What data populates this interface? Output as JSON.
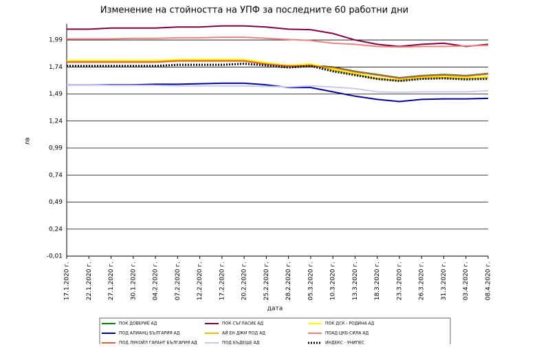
{
  "chart_data": {
    "type": "line",
    "title": "Изменение на стойността на УПФ за последните 60 работни дни",
    "y_label": "лв",
    "x_label": "дата",
    "categories": [
      "17.1.2020 г.",
      "22.1.2020 г.",
      "27.1.2020 г.",
      "30.1.2020 г.",
      "04.2.2020 г.",
      "07.2.2020 г.",
      "12.2.2020 г.",
      "17.2.2020 г.",
      "20.2.2020 г.",
      "25.2.2020 г.",
      "28.2.2020 г.",
      "05.3.2020 г.",
      "10.3.2020 г.",
      "13.3.2020 г.",
      "18.3.2020 г.",
      "23.3.2020 г.",
      "26.3.2020 г.",
      "31.3.2020 г.",
      "03.4.2020 г.",
      "08.4.2020 г."
    ],
    "ylim": [
      -0.01,
      2.14
    ],
    "yticks": [
      {
        "value": -0.01,
        "label": "-0,01"
      },
      {
        "value": 0.24,
        "label": "0,24"
      },
      {
        "value": 0.49,
        "label": "0,49"
      },
      {
        "value": 0.74,
        "label": "0,74"
      },
      {
        "value": 0.99,
        "label": "0,99"
      },
      {
        "value": 1.24,
        "label": "1,24"
      },
      {
        "value": 1.49,
        "label": "1,49"
      },
      {
        "value": 1.74,
        "label": "1,74"
      },
      {
        "value": 1.99,
        "label": "1,99"
      }
    ],
    "grid": true,
    "series": [
      {
        "name": "ПОК ДОВЕРИЕ АД",
        "color": "#008000",
        "style": "solid",
        "values": [
          1.79,
          1.79,
          1.79,
          1.79,
          1.79,
          1.8,
          1.8,
          1.8,
          1.8,
          1.77,
          1.755,
          1.755,
          1.74,
          1.7,
          1.67,
          1.64,
          1.66,
          1.67,
          1.66,
          1.68
        ]
      },
      {
        "name": "ПОК СЪГЛАСИЕ АД",
        "color": "#800040",
        "style": "solid",
        "values": [
          2.09,
          2.09,
          2.1,
          2.1,
          2.1,
          2.11,
          2.11,
          2.12,
          2.12,
          2.11,
          2.09,
          2.085,
          2.05,
          1.99,
          1.95,
          1.93,
          1.95,
          1.96,
          1.93,
          1.95
        ]
      },
      {
        "name": "ПОК ДСК - РОДИНА АД",
        "color": "#ffff00",
        "style": "solid",
        "values": [
          1.8,
          1.8,
          1.8,
          1.8,
          1.8,
          1.81,
          1.81,
          1.81,
          1.81,
          1.78,
          1.755,
          1.77,
          1.72,
          1.68,
          1.64,
          1.62,
          1.645,
          1.65,
          1.64,
          1.65
        ]
      },
      {
        "name": "ПОД АЛИАНЦ БЪЛГАРИЯ АД",
        "color": "#0000a0",
        "style": "solid",
        "values": [
          1.575,
          1.575,
          1.575,
          1.575,
          1.58,
          1.58,
          1.585,
          1.59,
          1.59,
          1.575,
          1.55,
          1.55,
          1.51,
          1.47,
          1.44,
          1.42,
          1.44,
          1.445,
          1.445,
          1.45
        ]
      },
      {
        "name": "АЙ ЕН ДЖИ ПОД АД",
        "color": "#e0c000",
        "style": "solid",
        "values": [
          1.79,
          1.79,
          1.79,
          1.79,
          1.79,
          1.8,
          1.8,
          1.8,
          1.8,
          1.77,
          1.745,
          1.76,
          1.71,
          1.67,
          1.63,
          1.615,
          1.635,
          1.64,
          1.63,
          1.64
        ]
      },
      {
        "name": "ПОАД ЦКБ-СИЛА АД",
        "color": "#f08080",
        "style": "solid",
        "values": [
          2.0,
          2.0,
          2.0,
          2.005,
          2.005,
          2.01,
          2.01,
          2.015,
          2.015,
          2.005,
          1.995,
          1.985,
          1.96,
          1.95,
          1.93,
          1.925,
          1.93,
          1.93,
          1.935,
          1.94
        ]
      },
      {
        "name": "ПОД ЛУКОЙЛ ГАРАНТ БЪЛГАРИЯ АД",
        "color": "#e06030",
        "style": "solid",
        "values": [
          1.785,
          1.785,
          1.785,
          1.785,
          1.785,
          1.795,
          1.795,
          1.795,
          1.795,
          1.765,
          1.75,
          1.75,
          1.735,
          1.695,
          1.665,
          1.635,
          1.655,
          1.665,
          1.655,
          1.675
        ]
      },
      {
        "name": "ПОД БЪДЕЩЕ АД",
        "color": "#c8c8f0",
        "style": "solid",
        "values": [
          1.575,
          1.575,
          1.57,
          1.57,
          1.57,
          1.565,
          1.565,
          1.565,
          1.565,
          1.56,
          1.555,
          1.565,
          1.555,
          1.54,
          1.51,
          1.505,
          1.51,
          1.51,
          1.51,
          1.52
        ]
      },
      {
        "name": "ИНДЕКС - УНИПЕС",
        "color": "#000000",
        "style": "dotted",
        "values": [
          1.75,
          1.75,
          1.75,
          1.75,
          1.75,
          1.76,
          1.76,
          1.76,
          1.77,
          1.755,
          1.735,
          1.75,
          1.7,
          1.665,
          1.63,
          1.61,
          1.63,
          1.635,
          1.625,
          1.63
        ]
      }
    ]
  }
}
